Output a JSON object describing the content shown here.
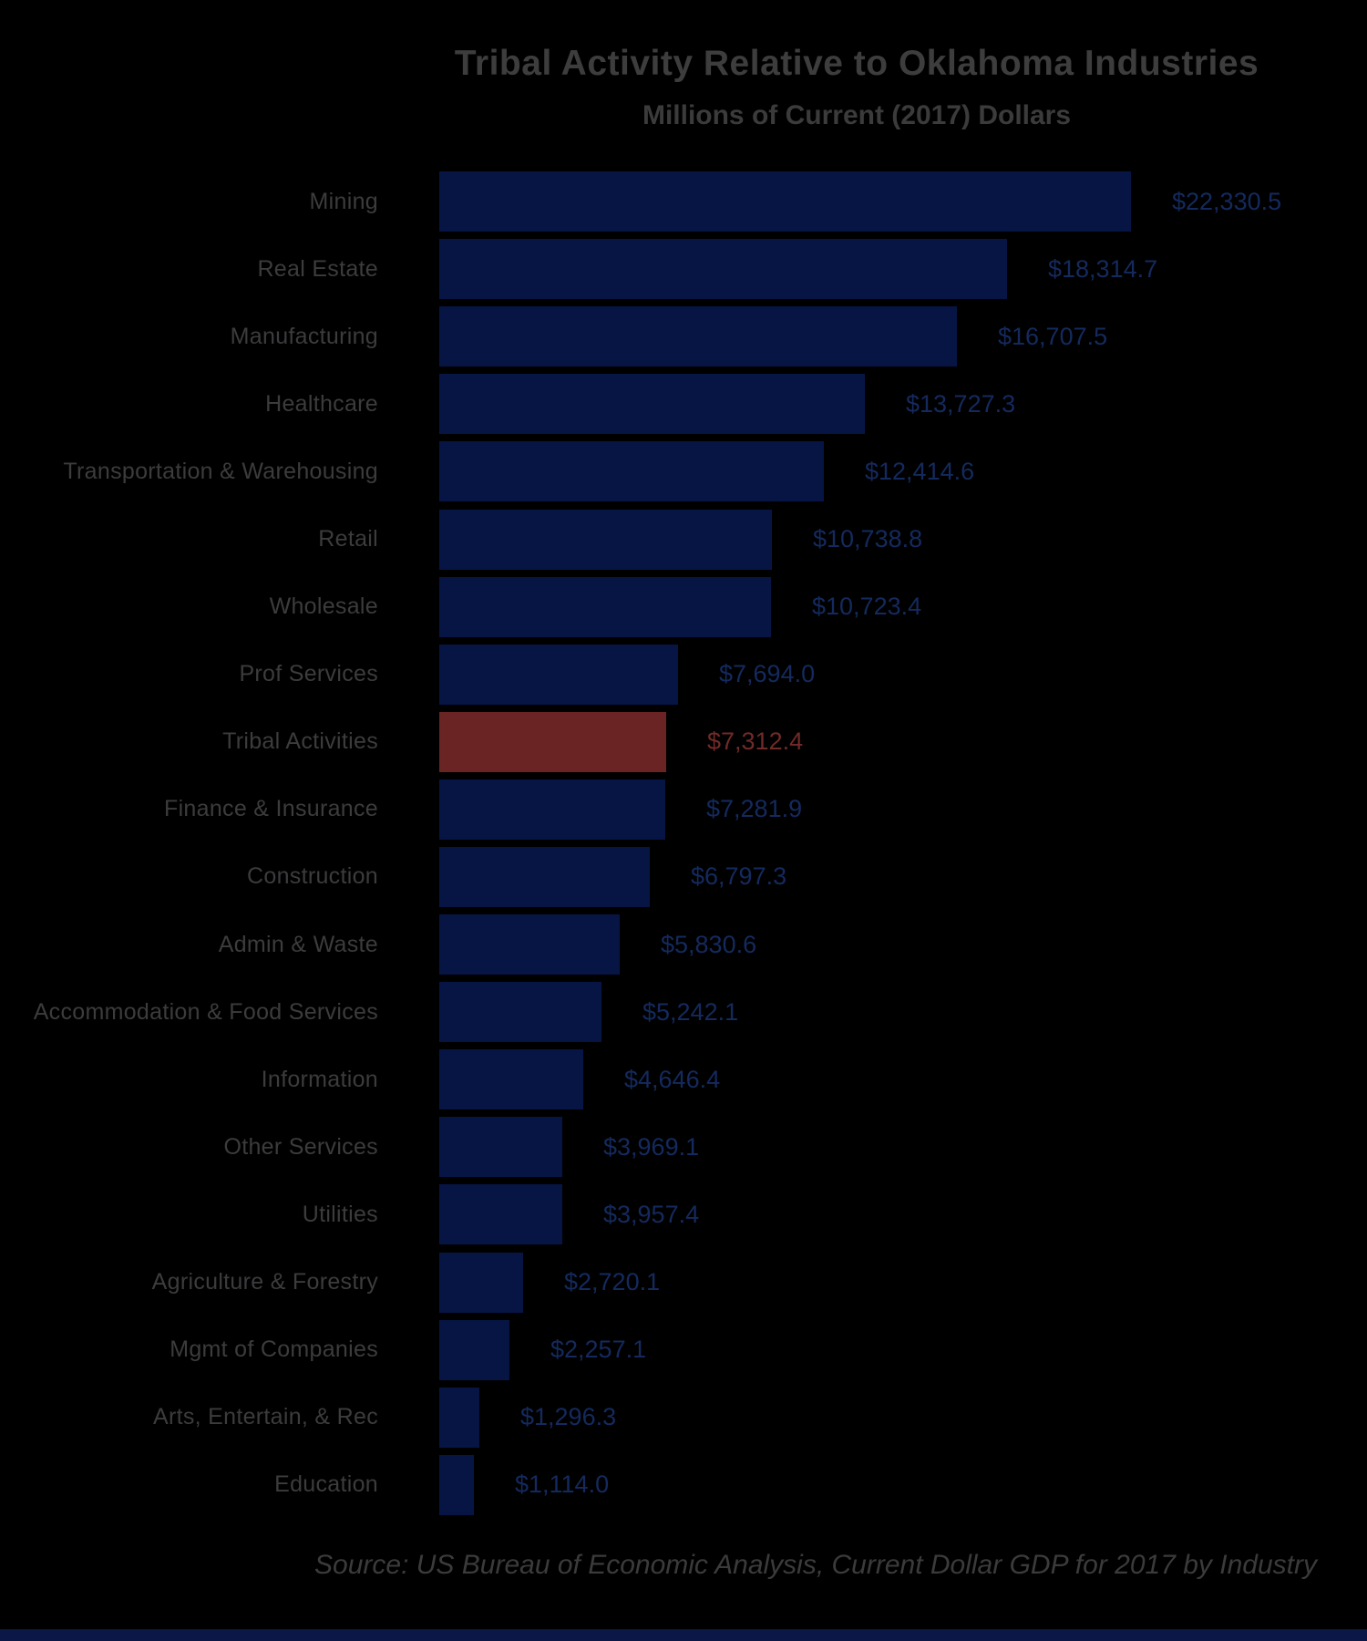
{
  "chart_data": {
    "type": "bar",
    "orientation": "horizontal",
    "title": "Tribal Activity Relative to Oklahoma Industries",
    "subtitle": "Millions of Current (2017) Dollars",
    "source_note": "Source: US Bureau of Economic Analysis, Current Dollar GDP for 2017 by Industry",
    "categories": [
      "Mining",
      "Real Estate",
      "Manufacturing",
      "Healthcare",
      "Transportation & Warehousing",
      "Retail",
      "Wholesale",
      "Prof Services",
      "Tribal Activities",
      "Finance & Insurance",
      "Construction",
      "Admin & Waste",
      "Accommodation & Food Services",
      "Information",
      "Other Services",
      "Utilities",
      "Agriculture & Forestry",
      "Mgmt of Companies",
      "Arts, Entertain, & Rec",
      "Education"
    ],
    "values": [
      22330.5,
      18314.7,
      16707.5,
      13727.3,
      12414.6,
      10738.8,
      10723.4,
      7694.0,
      7312.4,
      7281.9,
      6797.3,
      5830.6,
      5242.1,
      4646.4,
      3969.1,
      3957.4,
      2720.1,
      2257.1,
      1296.3,
      1114.0
    ],
    "value_labels": [
      "$22,330.5",
      "$18,314.7",
      "$16,707.5",
      "$13,727.3",
      "$12,414.6",
      "$10,738.8",
      "$10,723.4",
      "$7,694.0",
      "$7,312.4",
      "$7,281.9",
      "$6,797.3",
      "$5,830.6",
      "$5,242.1",
      "$4,646.4",
      "$3,969.1",
      "$3,957.4",
      "$2,720.1",
      "$2,257.1",
      "$1,296.3",
      "$1,114.0"
    ],
    "highlight_category": "Tribal Activities",
    "highlight_index": 8,
    "xlim": [
      0,
      23000
    ],
    "grid": false,
    "legend": false,
    "axis_ticks": "hidden",
    "colors": {
      "background": "#000000",
      "bar": "#061544",
      "bar_highlight": "#6b2424",
      "value_label": "#142a5e",
      "value_label_highlight": "#712a28",
      "category_label": "#3c3c3e",
      "title": "#3d3d3d",
      "subtitle": "#3b3b3b",
      "source": "#3b3b3b",
      "bottom_strip": "#0a1747"
    }
  }
}
